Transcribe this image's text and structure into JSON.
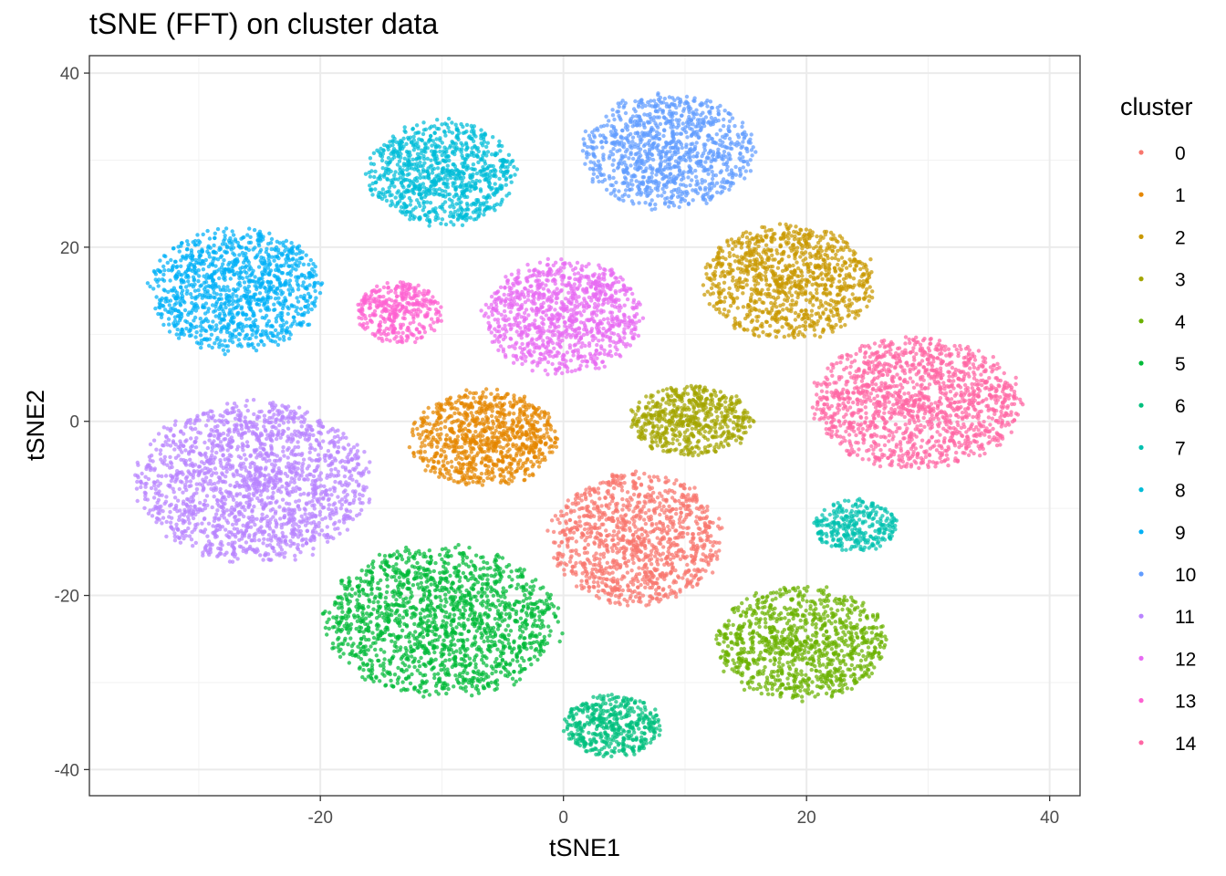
{
  "chart_data": {
    "type": "scatter",
    "title": "tSNE (FFT) on cluster data",
    "xlabel": "tSNE1",
    "ylabel": "tSNE2",
    "xlim": [
      -39,
      42.5
    ],
    "ylim": [
      -43,
      42
    ],
    "xticks": [
      -20,
      0,
      20,
      40
    ],
    "yticks": [
      -40,
      -20,
      0,
      20,
      40
    ],
    "xtick_labels": [
      "-20",
      "0",
      "20",
      "40"
    ],
    "ytick_labels": [
      "-40",
      "-20",
      "0",
      "20",
      "40"
    ],
    "grid": true,
    "legend": {
      "title": "cluster",
      "position": "right"
    },
    "series": [
      {
        "name": "0",
        "color": "#F8766D",
        "center": [
          6,
          -13.5
        ],
        "spread": [
          7,
          7.5
        ],
        "n": 1100
      },
      {
        "name": "1",
        "color": "#E58700",
        "center": [
          -6.5,
          -2
        ],
        "spread": [
          6,
          5.5
        ],
        "n": 900
      },
      {
        "name": "2",
        "color": "#C99800",
        "center": [
          18.5,
          16
        ],
        "spread": [
          7,
          6.5
        ],
        "n": 1000
      },
      {
        "name": "3",
        "color": "#A3A500",
        "center": [
          10.5,
          0
        ],
        "spread": [
          5,
          4
        ],
        "n": 600
      },
      {
        "name": "4",
        "color": "#6BB100",
        "center": [
          19.5,
          -25.5
        ],
        "spread": [
          7,
          6.5
        ],
        "n": 1000
      },
      {
        "name": "5",
        "color": "#00BA38",
        "center": [
          -10,
          -23
        ],
        "spread": [
          9.5,
          8.5
        ],
        "n": 1600
      },
      {
        "name": "6",
        "color": "#00BF7D",
        "center": [
          4,
          -35
        ],
        "spread": [
          4,
          3.5
        ],
        "n": 450
      },
      {
        "name": "7",
        "color": "#00C0AF",
        "center": [
          24,
          -12
        ],
        "spread": [
          3.5,
          3
        ],
        "n": 300
      },
      {
        "name": "8",
        "color": "#00BCD8",
        "center": [
          -10,
          28.5
        ],
        "spread": [
          6,
          6
        ],
        "n": 900
      },
      {
        "name": "9",
        "color": "#00B0F6",
        "center": [
          -27,
          15
        ],
        "spread": [
          7,
          7
        ],
        "n": 1100
      },
      {
        "name": "10",
        "color": "#619CFF",
        "center": [
          8.5,
          31
        ],
        "spread": [
          7,
          6.5
        ],
        "n": 1000
      },
      {
        "name": "11",
        "color": "#B983FF",
        "center": [
          -25.5,
          -7
        ],
        "spread": [
          9.5,
          9
        ],
        "n": 1700
      },
      {
        "name": "12",
        "color": "#E76BF3",
        "center": [
          0,
          12
        ],
        "spread": [
          6.5,
          6.5
        ],
        "n": 1000
      },
      {
        "name": "13",
        "color": "#FD61D1",
        "center": [
          -13.5,
          12.5
        ],
        "spread": [
          3.5,
          3.5
        ],
        "n": 350
      },
      {
        "name": "14",
        "color": "#FF67A4",
        "center": [
          29,
          2
        ],
        "spread": [
          8.5,
          7.5
        ],
        "n": 1400
      }
    ]
  }
}
